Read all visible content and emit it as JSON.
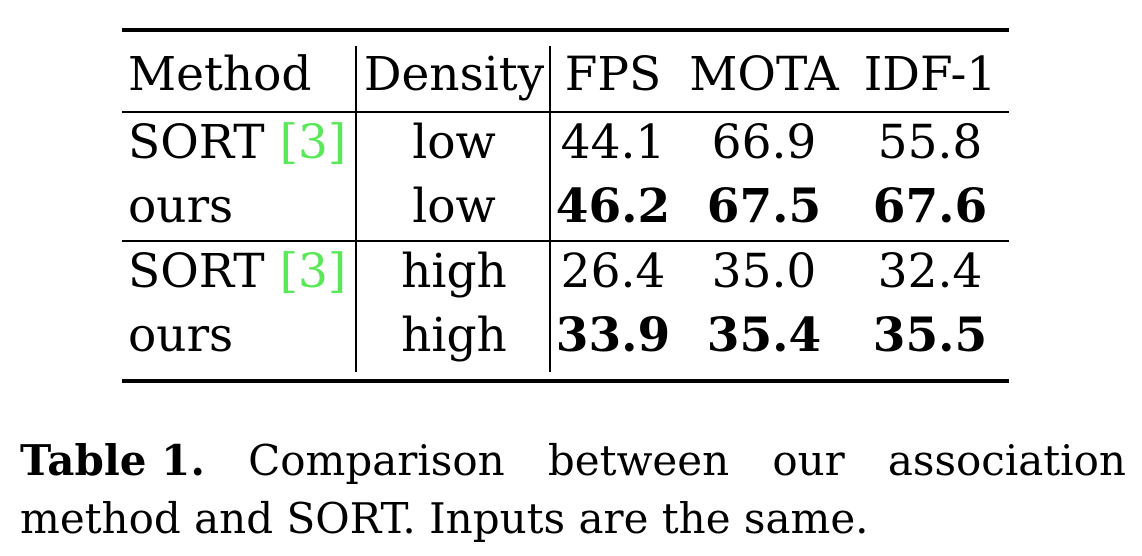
{
  "table": {
    "headers": {
      "method": "Method",
      "density": "Density",
      "fps": "FPS",
      "mota": "MOTA",
      "idf1": "IDF-1"
    },
    "rows": [
      {
        "method": "SORT",
        "ref": "3",
        "density": "low",
        "fps": "44.1",
        "mota": "66.9",
        "idf1": "55.8",
        "bold": false
      },
      {
        "method": "ours",
        "ref": "",
        "density": "low",
        "fps": "46.2",
        "mota": "67.5",
        "idf1": "67.6",
        "bold": true
      },
      {
        "method": "SORT",
        "ref": "3",
        "density": "high",
        "fps": "26.4",
        "mota": "35.0",
        "idf1": "32.4",
        "bold": false
      },
      {
        "method": "ours",
        "ref": "",
        "density": "high",
        "fps": "33.9",
        "mota": "35.4",
        "idf1": "35.5",
        "bold": true
      }
    ],
    "ref_color": "#58e858"
  },
  "caption": {
    "label": "Table 1.",
    "line1_words": [
      "Comparison",
      "between",
      "our",
      "association"
    ],
    "line2": "method and SORT. Inputs are the same."
  }
}
